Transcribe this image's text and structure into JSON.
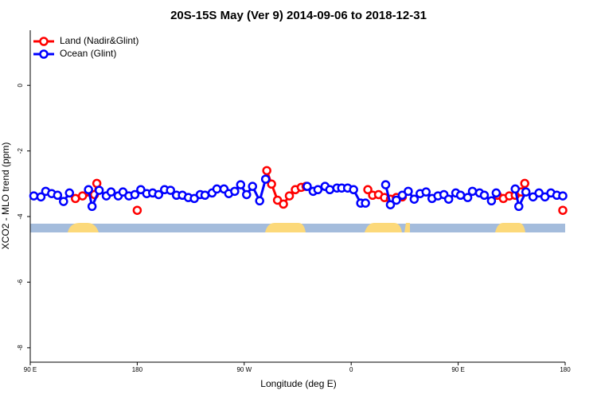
{
  "chart_data": {
    "type": "line",
    "title": "20S-15S May (Ver 9)   2014-09-06 to 2018-12-31",
    "x_label": "Longitude (deg E)",
    "y_label": "XCO2 - MLO trend (ppm)",
    "xlim": [
      90,
      540
    ],
    "ylim": [
      -8.44,
      1.68
    ],
    "xticks": [
      {
        "value": 90,
        "label": "90 E"
      },
      180,
      {
        "value": 270,
        "label": "90 W"
      },
      {
        "value": 360,
        "label": "0"
      },
      {
        "value": 450,
        "label": "90 E"
      },
      {
        "value": 540,
        "label": "180"
      }
    ],
    "yticks": [
      0,
      -2,
      -4,
      -6,
      -8
    ],
    "legend": "top-left",
    "series": [
      {
        "name": "Land (Nadir&Glint)",
        "color": "#ff0000",
        "x": [
          128,
          134,
          144,
          146,
          null,
          180,
          null,
          289,
          293,
          298,
          303,
          308,
          313,
          318,
          322,
          null,
          374,
          378,
          383,
          388,
          393,
          398,
          403,
          null,
          483,
          488,
          493,
          498,
          503,
          506,
          null,
          538
        ],
        "values": [
          -3.45,
          -3.37,
          -3.33,
          -2.99,
          null,
          -3.81,
          null,
          -2.6,
          -3.01,
          -3.5,
          -3.62,
          -3.37,
          -3.18,
          -3.11,
          -3.08,
          null,
          -3.18,
          -3.35,
          -3.33,
          -3.42,
          -3.47,
          -3.42,
          -3.4,
          null,
          -3.35,
          -3.45,
          -3.37,
          -3.35,
          -3.25,
          -2.99,
          null,
          -3.81
        ]
      },
      {
        "name": "Ocean (Glint)",
        "color": "#0000ff",
        "x": [
          93,
          99,
          103,
          108,
          113,
          118,
          123,
          null,
          139,
          142,
          148,
          154,
          158,
          164,
          168,
          173,
          178,
          183,
          188,
          193,
          198,
          203,
          208,
          213,
          218,
          223,
          228,
          233,
          237,
          243,
          247,
          253,
          257,
          262,
          267,
          272,
          277,
          283,
          288,
          null,
          323,
          328,
          332,
          338,
          342,
          348,
          352,
          357,
          362,
          368,
          372,
          null,
          389,
          393,
          398,
          403,
          408,
          413,
          418,
          423,
          428,
          433,
          438,
          442,
          448,
          452,
          458,
          462,
          468,
          472,
          478,
          482,
          null,
          498,
          501,
          507,
          513,
          518,
          523,
          528,
          533,
          538
        ],
        "values": [
          -3.37,
          -3.4,
          -3.23,
          -3.3,
          -3.35,
          -3.54,
          -3.28,
          null,
          -3.18,
          -3.69,
          -3.2,
          -3.37,
          -3.25,
          -3.37,
          -3.25,
          -3.37,
          -3.33,
          -3.18,
          -3.3,
          -3.28,
          -3.33,
          -3.18,
          -3.2,
          -3.35,
          -3.35,
          -3.42,
          -3.45,
          -3.33,
          -3.35,
          -3.28,
          -3.16,
          -3.16,
          -3.3,
          -3.23,
          -3.03,
          -3.33,
          -3.08,
          -3.52,
          -2.86,
          null,
          -3.08,
          -3.23,
          -3.18,
          -3.08,
          -3.18,
          -3.13,
          -3.13,
          -3.13,
          -3.18,
          -3.59,
          -3.59,
          null,
          -3.03,
          -3.64,
          -3.5,
          -3.35,
          -3.23,
          -3.47,
          -3.3,
          -3.25,
          -3.45,
          -3.37,
          -3.33,
          -3.47,
          -3.28,
          -3.35,
          -3.42,
          -3.23,
          -3.28,
          -3.35,
          -3.52,
          -3.28,
          null,
          -3.16,
          -3.69,
          -3.25,
          -3.4,
          -3.28,
          -3.4,
          -3.28,
          -3.35,
          -3.37
        ]
      }
    ]
  }
}
